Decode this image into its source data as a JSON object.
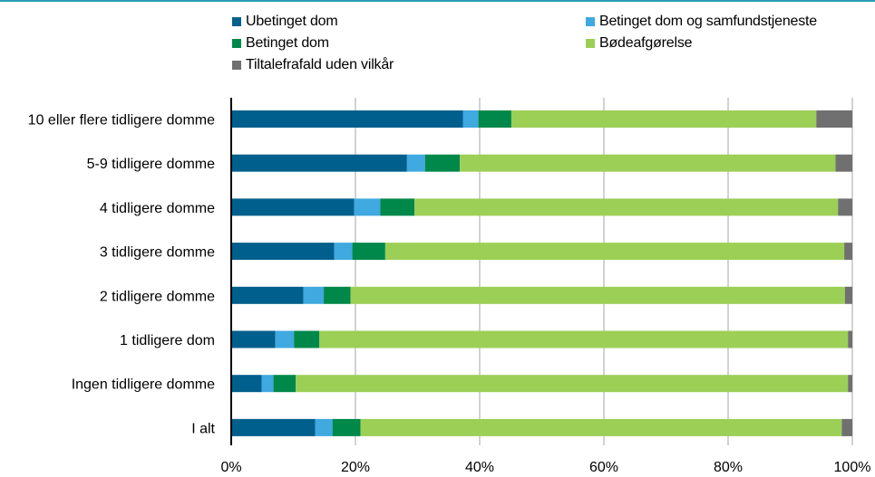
{
  "chart_data": {
    "type": "bar",
    "orientation": "horizontal",
    "stacked": true,
    "title": "",
    "xlabel": "",
    "ylabel": "",
    "xlim": [
      0,
      100
    ],
    "x_tick_labels": [
      "0%",
      "20%",
      "40%",
      "60%",
      "80%",
      "100%"
    ],
    "grid": true,
    "legend_position": "top",
    "categories": [
      "10 eller flere tidligere domme",
      "5-9 tidligere domme",
      "4 tidligere domme",
      "3 tidligere domme",
      "2 tidligere domme",
      "1 tidligere dom",
      "Ingen tidligere domme",
      "I alt"
    ],
    "series": [
      {
        "name": "Ubetinget dom",
        "color": "#005f8c",
        "values": [
          37.3,
          28.3,
          19.8,
          16.6,
          11.6,
          7.1,
          4.9,
          13.5
        ]
      },
      {
        "name": "Betinget dom og samfundstjeneste",
        "color": "#3fa9e0",
        "values": [
          2.5,
          2.9,
          4.2,
          2.9,
          3.3,
          3.0,
          1.9,
          2.8
        ]
      },
      {
        "name": "Betinget dom",
        "color": "#00884a",
        "values": [
          5.3,
          5.6,
          5.5,
          5.3,
          4.3,
          4.1,
          3.6,
          4.5
        ]
      },
      {
        "name": "Bødeafgørelse",
        "color": "#9ccf56",
        "values": [
          49.1,
          60.5,
          68.2,
          73.9,
          79.6,
          85.1,
          88.9,
          77.5
        ]
      },
      {
        "name": "Tiltalefrafald uden vilkår",
        "color": "#707070",
        "values": [
          5.8,
          2.7,
          2.3,
          1.3,
          1.2,
          0.7,
          0.7,
          1.7
        ]
      }
    ]
  }
}
